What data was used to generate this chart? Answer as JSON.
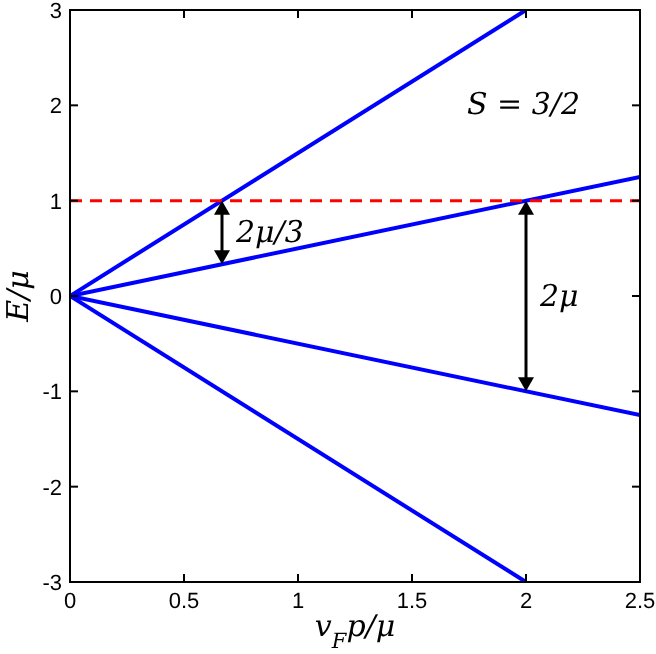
{
  "chart_data": {
    "type": "line",
    "xlabel": "v$_{F}$p/μ",
    "ylabel": "E/μ",
    "xlim": [
      0,
      2.5
    ],
    "ylim": [
      -3,
      3
    ],
    "xticks": [
      0,
      0.5,
      1,
      1.5,
      2,
      2.5
    ],
    "yticks": [
      -3,
      -2,
      -1,
      0,
      1,
      2,
      3
    ],
    "grid": false,
    "line_style": "solid",
    "marker": "none",
    "series": [
      {
        "color": "#0000ff",
        "x": [
          0,
          2
        ],
        "values": [
          0,
          3
        ]
      },
      {
        "color": "#0000ff",
        "x": [
          0,
          2.5
        ],
        "values": [
          0,
          1.25
        ]
      },
      {
        "color": "#0000ff",
        "x": [
          0,
          2.5
        ],
        "values": [
          0,
          -1.25
        ]
      },
      {
        "color": "#0000ff",
        "x": [
          0,
          2
        ],
        "values": [
          0,
          -3
        ]
      }
    ],
    "ref_lines": [
      {
        "axis": "y",
        "value": 1,
        "color": "#ff0000",
        "line_style": "dashed"
      }
    ],
    "annotations": [
      "2μ/3",
      "2μ",
      "S = 3/2"
    ]
  }
}
